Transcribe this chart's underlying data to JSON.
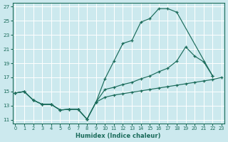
{
  "xlabel": "Humidex (Indice chaleur)",
  "xlim": [
    -0.3,
    23.3
  ],
  "ylim": [
    10.5,
    27.5
  ],
  "xticks": [
    0,
    1,
    2,
    3,
    4,
    5,
    6,
    7,
    8,
    9,
    10,
    11,
    12,
    13,
    14,
    15,
    16,
    17,
    18,
    19,
    20,
    21,
    22,
    23
  ],
  "yticks": [
    11,
    13,
    15,
    17,
    19,
    21,
    23,
    25,
    27
  ],
  "bg_color": "#cce9ee",
  "line_color": "#1a6b5a",
  "grid_color": "#b8d8dd",
  "curve1_x": [
    0,
    1,
    2,
    3,
    4,
    5,
    6,
    7,
    8,
    9,
    10,
    11,
    12,
    13,
    14,
    15,
    16,
    17,
    18,
    22
  ],
  "curve1_y": [
    14.8,
    15.0,
    13.8,
    13.2,
    13.2,
    12.4,
    12.5,
    12.5,
    11.1,
    13.5,
    16.8,
    19.3,
    21.8,
    22.2,
    24.8,
    25.3,
    26.7,
    26.7,
    26.2,
    17.2
  ],
  "curve2_x": [
    0,
    1,
    2,
    3,
    4,
    5,
    6,
    7,
    8,
    9,
    10,
    11,
    12,
    13,
    14,
    15,
    16,
    17,
    18,
    19,
    20,
    21,
    22
  ],
  "curve2_y": [
    14.8,
    15.0,
    13.8,
    13.2,
    13.2,
    12.4,
    12.5,
    12.5,
    11.1,
    13.5,
    15.3,
    15.6,
    16.0,
    16.3,
    16.8,
    17.2,
    17.8,
    18.3,
    19.3,
    21.3,
    20.0,
    19.2,
    17.2
  ],
  "curve3_x": [
    0,
    1,
    2,
    3,
    4,
    5,
    6,
    7,
    8,
    9,
    10,
    11,
    12,
    13,
    14,
    15,
    16,
    17,
    18,
    19,
    20,
    21,
    22,
    23
  ],
  "curve3_y": [
    14.8,
    15.0,
    13.8,
    13.2,
    13.2,
    12.4,
    12.5,
    12.5,
    11.1,
    13.5,
    14.2,
    14.5,
    14.7,
    14.9,
    15.1,
    15.3,
    15.5,
    15.7,
    15.9,
    16.1,
    16.3,
    16.5,
    16.7,
    17.0
  ]
}
